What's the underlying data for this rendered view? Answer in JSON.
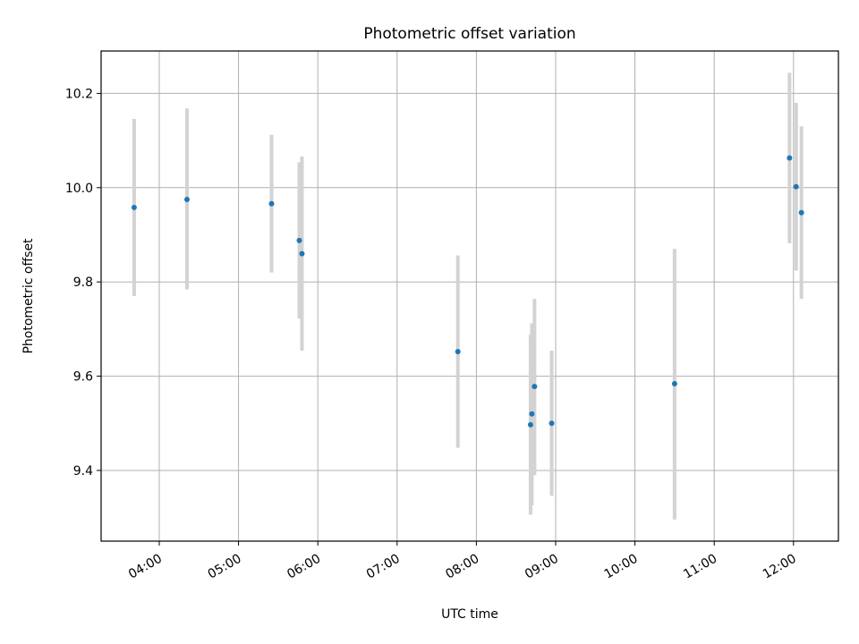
{
  "chart_data": {
    "type": "scatter",
    "title": "Photometric offset variation",
    "xlabel": "UTC time",
    "ylabel": "Photometric offset",
    "x_ticks": [
      "04:00",
      "05:00",
      "06:00",
      "07:00",
      "08:00",
      "09:00",
      "10:00",
      "11:00",
      "12:00"
    ],
    "xlim": [
      "03:16",
      "12:34"
    ],
    "y_ticks": [
      "9.4",
      "9.6",
      "9.8",
      "10.0",
      "10.2"
    ],
    "ylim": [
      9.25,
      10.29
    ],
    "grid": true,
    "point_color": "#1f77b4",
    "errorbar_color": "#d3d3d3",
    "points": [
      {
        "x": "03:41",
        "y": 9.958,
        "yerr_low": 9.77,
        "yerr_high": 10.146
      },
      {
        "x": "04:21",
        "y": 9.975,
        "yerr_low": 9.784,
        "yerr_high": 10.168
      },
      {
        "x": "05:25",
        "y": 9.966,
        "yerr_low": 9.82,
        "yerr_high": 10.112
      },
      {
        "x": "05:46",
        "y": 9.888,
        "yerr_low": 9.722,
        "yerr_high": 10.054
      },
      {
        "x": "05:48",
        "y": 9.86,
        "yerr_low": 9.654,
        "yerr_high": 10.066
      },
      {
        "x": "07:46",
        "y": 9.652,
        "yerr_low": 9.448,
        "yerr_high": 9.856
      },
      {
        "x": "08:41",
        "y": 9.497,
        "yerr_low": 9.306,
        "yerr_high": 9.688
      },
      {
        "x": "08:42",
        "y": 9.52,
        "yerr_low": 9.326,
        "yerr_high": 9.712
      },
      {
        "x": "08:44",
        "y": 9.578,
        "yerr_low": 9.39,
        "yerr_high": 9.764
      },
      {
        "x": "08:57",
        "y": 9.5,
        "yerr_low": 9.346,
        "yerr_high": 9.654
      },
      {
        "x": "10:30",
        "y": 9.584,
        "yerr_low": 9.296,
        "yerr_high": 9.87
      },
      {
        "x": "11:57",
        "y": 10.063,
        "yerr_low": 9.882,
        "yerr_high": 10.244
      },
      {
        "x": "12:02",
        "y": 10.002,
        "yerr_low": 9.824,
        "yerr_high": 10.18
      },
      {
        "x": "12:06",
        "y": 9.947,
        "yerr_low": 9.764,
        "yerr_high": 10.13
      }
    ]
  }
}
